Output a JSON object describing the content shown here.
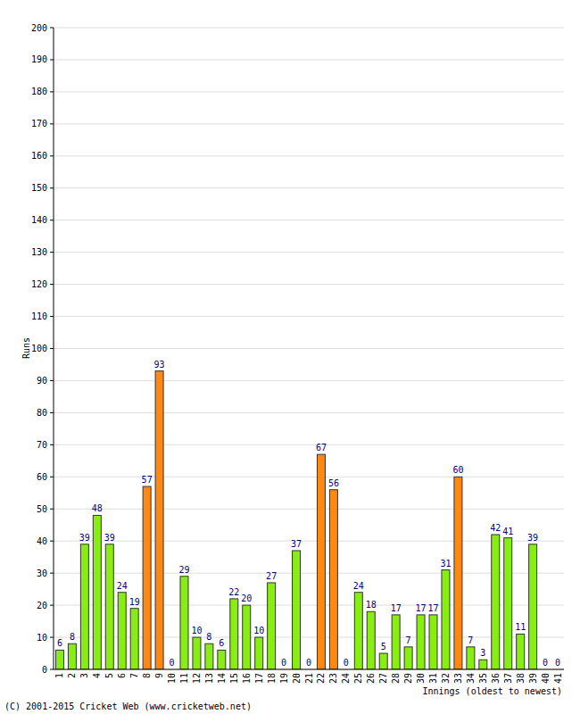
{
  "chart_data": {
    "type": "bar",
    "y_label": "Runs",
    "x_label": "Innings (oldest to newest)",
    "annotations": [
      "(C) 2001-2015 Cricket Web (www.cricketweb.net)"
    ],
    "categories": [
      "1",
      "2",
      "3",
      "4",
      "5",
      "6",
      "7",
      "8",
      "9",
      "10",
      "11",
      "12",
      "13",
      "14",
      "15",
      "16",
      "17",
      "18",
      "19",
      "20",
      "21",
      "22",
      "23",
      "24",
      "25",
      "26",
      "27",
      "28",
      "29",
      "30",
      "31",
      "32",
      "33",
      "34",
      "35",
      "36",
      "37",
      "38",
      "39",
      "40",
      "41"
    ],
    "values": [
      6,
      8,
      39,
      48,
      39,
      24,
      19,
      57,
      93,
      0,
      29,
      10,
      8,
      6,
      22,
      20,
      10,
      27,
      0,
      37,
      0,
      67,
      56,
      0,
      24,
      18,
      5,
      17,
      7,
      17,
      17,
      31,
      60,
      7,
      3,
      42,
      41,
      11,
      39,
      0,
      0
    ],
    "colors": [
      "#88ee11",
      "#88ee11",
      "#88ee11",
      "#88ee11",
      "#88ee11",
      "#88ee11",
      "#88ee11",
      "#ff8811",
      "#ff8811",
      "#88ee11",
      "#88ee11",
      "#88ee11",
      "#88ee11",
      "#88ee11",
      "#88ee11",
      "#88ee11",
      "#88ee11",
      "#88ee11",
      "#88ee11",
      "#88ee11",
      "#88ee11",
      "#ff8811",
      "#ff8811",
      "#88ee11",
      "#88ee11",
      "#88ee11",
      "#88ee11",
      "#88ee11",
      "#88ee11",
      "#88ee11",
      "#88ee11",
      "#88ee11",
      "#ff8811",
      "#88ee11",
      "#88ee11",
      "#88ee11",
      "#88ee11",
      "#88ee11",
      "#88ee11",
      "#88ee11",
      "#88ee11"
    ],
    "ylim": [
      0,
      200
    ],
    "yticks": [
      0,
      10,
      20,
      30,
      40,
      50,
      60,
      70,
      80,
      90,
      100,
      110,
      120,
      130,
      140,
      150,
      160,
      170,
      180,
      190,
      200
    ],
    "grid": true,
    "data_labels": true
  }
}
